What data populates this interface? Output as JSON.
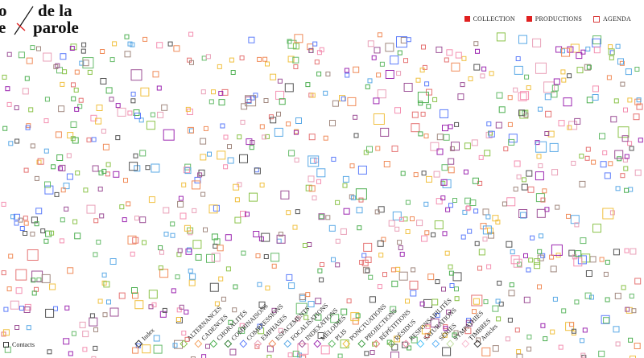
{
  "logo": {
    "word1": "o",
    "word2": "e",
    "word3": "de la",
    "word4": "parole"
  },
  "topnav": {
    "collection": "COLLECTION",
    "productions": "PRODUCTIONS",
    "agenda": "AGENDA"
  },
  "bottom": {
    "contacts": "Contacts",
    "index": "Index",
    "articles": "Articles",
    "categories": [
      {
        "label": "ALTERNANCES",
        "color": "#8bc34a"
      },
      {
        "label": "CADENCES",
        "color": "#f4a261"
      },
      {
        "label": "CHORALITÉS",
        "color": "#4caf50"
      },
      {
        "label": "COMBINAISONS",
        "color": "#2e7d32"
      },
      {
        "label": "COMPRESSIONS",
        "color": "#5c7cfa"
      },
      {
        "label": "EMPHASES",
        "color": "#e9a0b8"
      },
      {
        "label": "ESPACEMENTS",
        "color": "#f08c5a"
      },
      {
        "label": "FOCALISATIONS",
        "color": "#5aa9e6"
      },
      {
        "label": "INDEXATIONS",
        "color": "#9c4f96"
      },
      {
        "label": "MÉLODIES",
        "color": "#9c27b0"
      },
      {
        "label": "PLIS",
        "color": "#66bb6a"
      },
      {
        "label": "PONCTUATIONS",
        "color": "#f0c040"
      },
      {
        "label": "PROJECTIONS",
        "color": "#43a047"
      },
      {
        "label": "RÉPÉTITIONS",
        "color": "#e57373"
      },
      {
        "label": "RÉSIDUS",
        "color": "#7cb342"
      },
      {
        "label": "RESPONSABILITÉS",
        "color": "#f48fb1"
      },
      {
        "label": "SATURATIONS",
        "color": "#4fc3f7"
      },
      {
        "label": "SÉRIES",
        "color": "#64b5f6"
      },
      {
        "label": "SYMPATHIES",
        "color": "#c5e1a5"
      },
      {
        "label": "TIMBRES",
        "color": "#f8bbd0"
      }
    ]
  },
  "palette": [
    "#8bc34a",
    "#4caf50",
    "#e57373",
    "#5c7cfa",
    "#9c27b0",
    "#f08c5a",
    "#f48fb1",
    "#5aa9e6",
    "#a1887f",
    "#66bb6a",
    "#e9a0b8",
    "#555555",
    "#f0c040",
    "#9c4f96"
  ]
}
